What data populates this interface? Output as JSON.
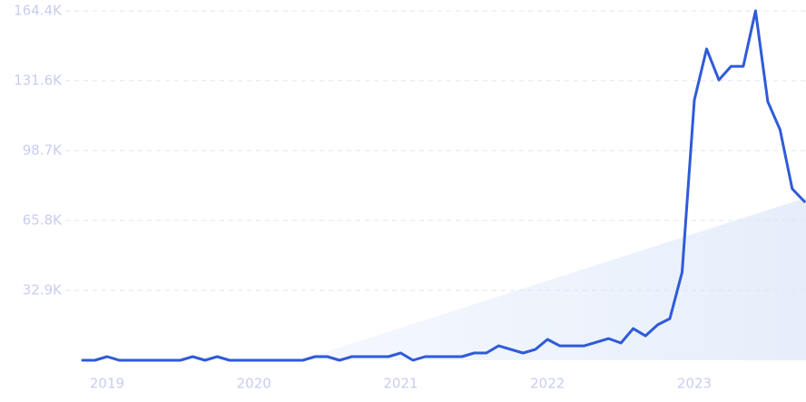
{
  "chart_data": {
    "type": "line",
    "categories": [
      null,
      null,
      "2019",
      null,
      null,
      null,
      null,
      null,
      null,
      null,
      null,
      null,
      null,
      null,
      "2020",
      null,
      null,
      null,
      null,
      null,
      null,
      null,
      null,
      null,
      null,
      null,
      "2021",
      null,
      null,
      null,
      null,
      null,
      null,
      null,
      null,
      null,
      null,
      null,
      "2022",
      null,
      null,
      null,
      null,
      null,
      null,
      null,
      null,
      null,
      null,
      null,
      "2023",
      null,
      null,
      null,
      null,
      null,
      null,
      null,
      null,
      null
    ],
    "values": [
      0,
      0,
      1700,
      0,
      0,
      0,
      0,
      0,
      0,
      1700,
      0,
      1700,
      0,
      0,
      0,
      0,
      0,
      0,
      0,
      1700,
      1700,
      0,
      1700,
      1700,
      1700,
      1700,
      3400,
      0,
      1700,
      1700,
      1700,
      1700,
      3400,
      3400,
      6800,
      5100,
      3400,
      5100,
      9800,
      6800,
      6800,
      6800,
      8500,
      10200,
      8100,
      14900,
      11500,
      16700,
      19600,
      41400,
      122500,
      146500,
      131900,
      138300,
      138300,
      164400,
      121700,
      108500,
      80700,
      74700
    ],
    "color": "#2f5bd9",
    "ylim": [
      0,
      164400
    ],
    "yticks": [
      {
        "value": 32900,
        "label": "32.9K"
      },
      {
        "value": 65800,
        "label": "65.8K"
      },
      {
        "value": 98700,
        "label": "98.7K"
      },
      {
        "value": 131600,
        "label": "131.6K"
      },
      {
        "value": 164400,
        "label": "164.4K"
      }
    ],
    "grid": true
  }
}
